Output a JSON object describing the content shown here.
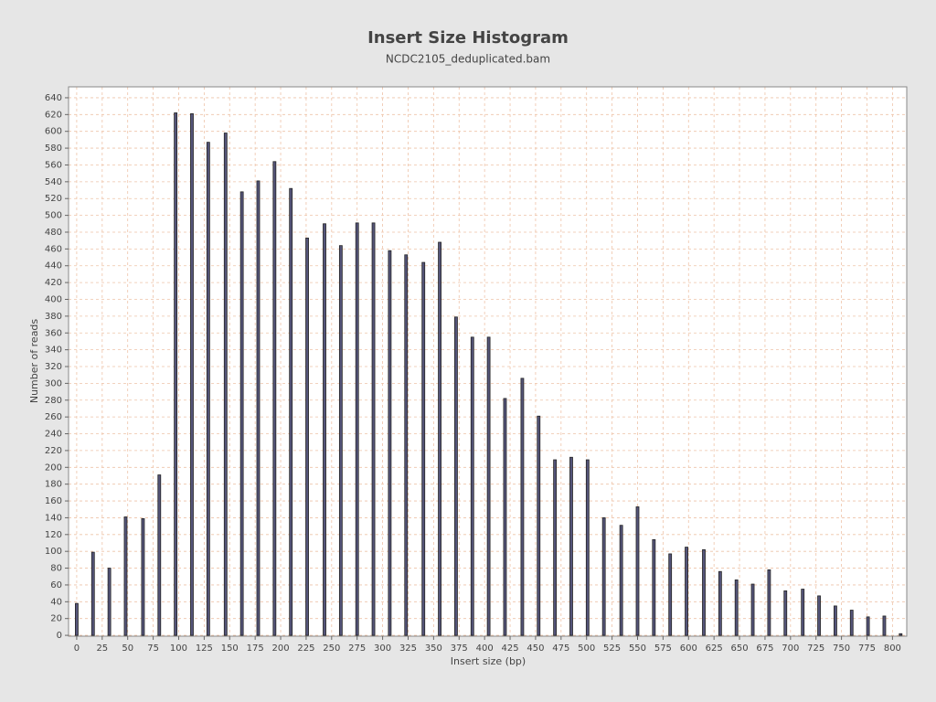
{
  "chart_data": {
    "type": "bar",
    "title": "Insert Size Histogram",
    "subtitle": "NCDC2105_deduplicated.bam",
    "x_label": "Insert size (bp)",
    "y_label": "Number of reads",
    "color": "#55557a",
    "grid": true,
    "x": [
      0,
      16,
      32,
      48,
      65,
      81,
      97,
      113,
      129,
      146,
      162,
      178,
      194,
      210,
      226,
      243,
      259,
      275,
      291,
      307,
      323,
      340,
      356,
      372,
      388,
      404,
      420,
      437,
      453,
      469,
      485,
      501,
      517,
      534,
      550,
      566,
      582,
      598,
      615,
      631,
      647,
      663,
      679,
      695,
      712,
      728,
      744,
      760,
      776,
      792,
      808
    ],
    "values": [
      38,
      99,
      80,
      141,
      139,
      191,
      622,
      621,
      587,
      598,
      528,
      541,
      564,
      532,
      473,
      490,
      464,
      491,
      491,
      458,
      453,
      444,
      468,
      379,
      355,
      355,
      282,
      306,
      261,
      209,
      212,
      209,
      140,
      131,
      153,
      114,
      97,
      105,
      102,
      76,
      66,
      61,
      78,
      53,
      55,
      47,
      35,
      30,
      22,
      23,
      2
    ],
    "xlim": [
      -8,
      814
    ],
    "ylim": [
      -1,
      653
    ],
    "xticks": [
      0,
      25,
      50,
      75,
      100,
      125,
      150,
      175,
      200,
      225,
      250,
      275,
      300,
      325,
      350,
      375,
      400,
      425,
      450,
      475,
      500,
      525,
      550,
      575,
      600,
      625,
      650,
      675,
      700,
      725,
      750,
      775,
      800
    ],
    "yticks": [
      0,
      20,
      40,
      60,
      80,
      100,
      120,
      140,
      160,
      180,
      200,
      220,
      240,
      260,
      280,
      300,
      320,
      340,
      360,
      380,
      400,
      420,
      440,
      460,
      480,
      500,
      520,
      540,
      560,
      580,
      600,
      620,
      640
    ]
  }
}
